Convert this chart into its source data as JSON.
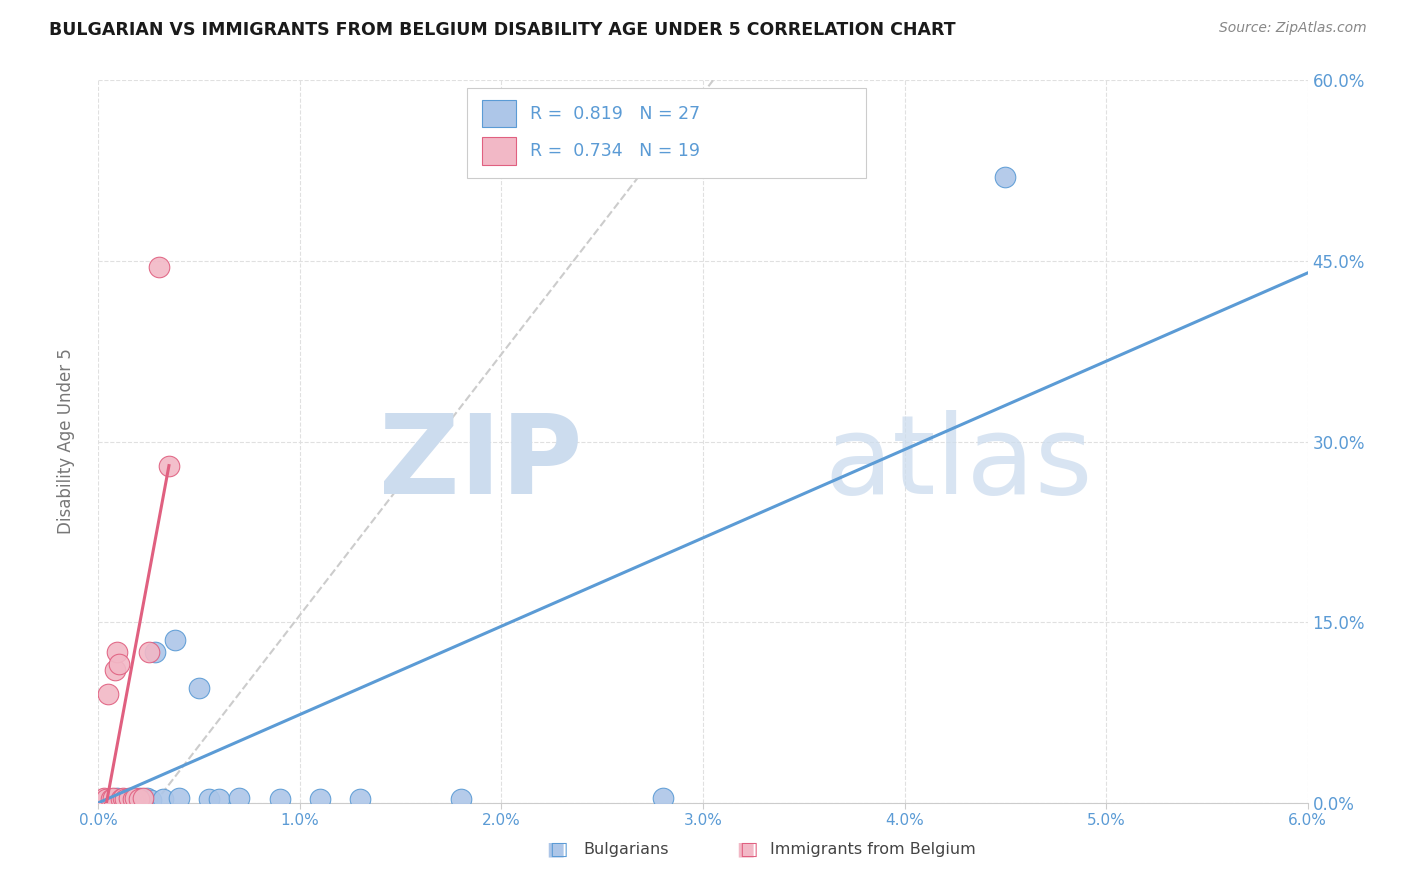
{
  "title": "BULGARIAN VS IMMIGRANTS FROM BELGIUM DISABILITY AGE UNDER 5 CORRELATION CHART",
  "source": "Source: ZipAtlas.com",
  "ylabel": "Disability Age Under 5",
  "r_blue": 0.819,
  "n_blue": 27,
  "r_pink": 0.734,
  "n_pink": 19,
  "xlim": [
    0.0,
    6.0
  ],
  "ylim": [
    0.0,
    60.0
  ],
  "x_ticks": [
    0,
    1,
    2,
    3,
    4,
    5,
    6
  ],
  "y_ticks": [
    0,
    15,
    30,
    45,
    60
  ],
  "blue_fill": "#adc6e8",
  "blue_edge": "#5b9bd5",
  "pink_fill": "#f2b8c6",
  "pink_edge": "#e06080",
  "blue_line_color": "#5b9bd5",
  "pink_line_color": "#e06080",
  "diag_color": "#cccccc",
  "grid_color": "#e0e0e0",
  "bg_color": "#ffffff",
  "title_color": "#1a1a1a",
  "tick_color": "#5b9bd5",
  "ylabel_color": "#777777",
  "wm_color": "#ccdcee",
  "legend_label_blue": "Bulgarians",
  "legend_label_pink": "Immigrants from Belgium",
  "blue_scatter": [
    [
      0.05,
      0.3
    ],
    [
      0.07,
      0.2
    ],
    [
      0.09,
      0.4
    ],
    [
      0.1,
      0.3
    ],
    [
      0.12,
      0.2
    ],
    [
      0.13,
      0.3
    ],
    [
      0.15,
      0.3
    ],
    [
      0.16,
      0.2
    ],
    [
      0.18,
      0.2
    ],
    [
      0.2,
      0.4
    ],
    [
      0.22,
      0.3
    ],
    [
      0.24,
      0.4
    ],
    [
      0.26,
      0.2
    ],
    [
      0.28,
      12.5
    ],
    [
      0.32,
      0.3
    ],
    [
      0.38,
      13.5
    ],
    [
      0.4,
      0.4
    ],
    [
      0.5,
      9.5
    ],
    [
      0.55,
      0.3
    ],
    [
      0.6,
      0.3
    ],
    [
      0.7,
      0.4
    ],
    [
      0.9,
      0.3
    ],
    [
      1.1,
      0.3
    ],
    [
      1.3,
      0.3
    ],
    [
      1.8,
      0.3
    ],
    [
      4.5,
      52.0
    ],
    [
      2.8,
      0.4
    ]
  ],
  "pink_scatter": [
    [
      0.03,
      0.4
    ],
    [
      0.04,
      0.3
    ],
    [
      0.05,
      9.0
    ],
    [
      0.06,
      0.3
    ],
    [
      0.07,
      0.4
    ],
    [
      0.08,
      11.0
    ],
    [
      0.09,
      12.5
    ],
    [
      0.1,
      11.5
    ],
    [
      0.11,
      0.3
    ],
    [
      0.12,
      0.4
    ],
    [
      0.13,
      0.3
    ],
    [
      0.15,
      0.4
    ],
    [
      0.17,
      0.3
    ],
    [
      0.18,
      0.4
    ],
    [
      0.2,
      0.3
    ],
    [
      0.22,
      0.4
    ],
    [
      0.25,
      12.5
    ],
    [
      0.3,
      44.5
    ],
    [
      0.35,
      28.0
    ]
  ],
  "blue_line_pts": [
    [
      0.0,
      0.0
    ],
    [
      6.0,
      44.0
    ]
  ],
  "pink_line_pts": [
    [
      0.04,
      0.0
    ],
    [
      0.35,
      28.0
    ]
  ],
  "diag_line_pts": [
    [
      0.28,
      0.0
    ],
    [
      3.05,
      60.0
    ]
  ]
}
